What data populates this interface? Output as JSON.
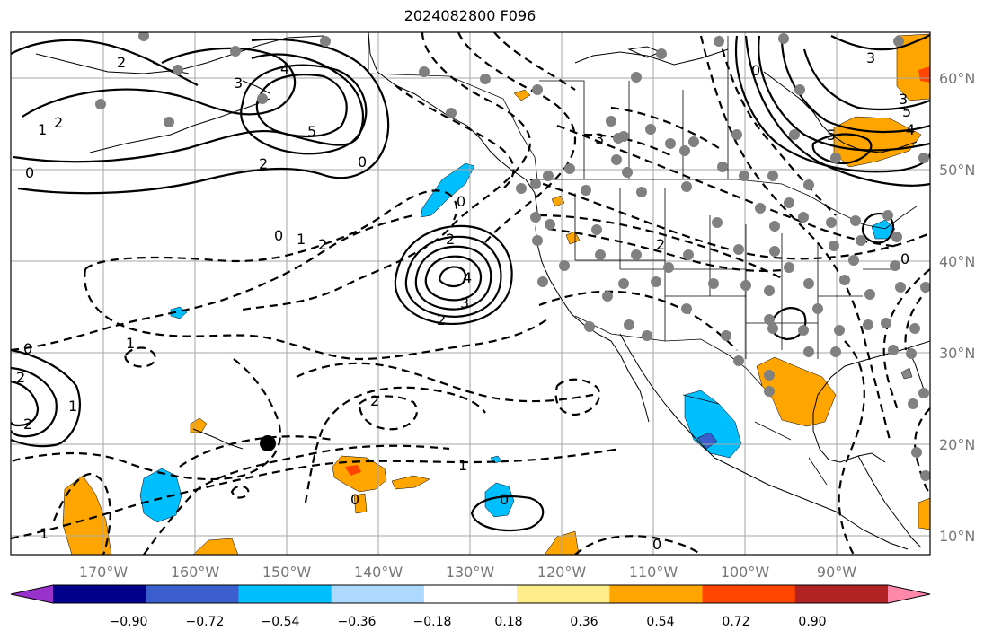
{
  "title": "2024082800 F096",
  "lat_labels": [
    "60°N",
    "50°N",
    "40°N",
    "30°N",
    "20°N",
    "10°N"
  ],
  "lon_labels": [
    "170°W",
    "160°W",
    "150°W",
    "140°W",
    "130°W",
    "120°W",
    "110°W",
    "100°W",
    "90°W"
  ],
  "colorbar": {
    "tick_labels": [
      "−0.90",
      "−0.72",
      "−0.54",
      "−0.36",
      "−0.18",
      "0.18",
      "0.36",
      "0.54",
      "0.72",
      "0.90"
    ],
    "colors": [
      "#9932cc",
      "#00008b",
      "#3a5fcd",
      "#00bfff",
      "#add8ff",
      "#ffffff",
      "#ffec8b",
      "#ffa500",
      "#ff4500",
      "#b22222",
      "#ff88aa"
    ]
  },
  "contour_labels": [
    "2",
    "4",
    "3",
    "5",
    "2",
    "0",
    "1",
    "2",
    "0",
    "3",
    "2",
    "0",
    "2",
    "3",
    "4",
    "5",
    "2",
    "0",
    "1",
    "2",
    "2",
    "1",
    "0",
    "1",
    "0",
    "1",
    "2",
    "0",
    "0",
    "1",
    "0",
    "3",
    "4",
    "5",
    "3",
    "2",
    "0"
  ]
}
